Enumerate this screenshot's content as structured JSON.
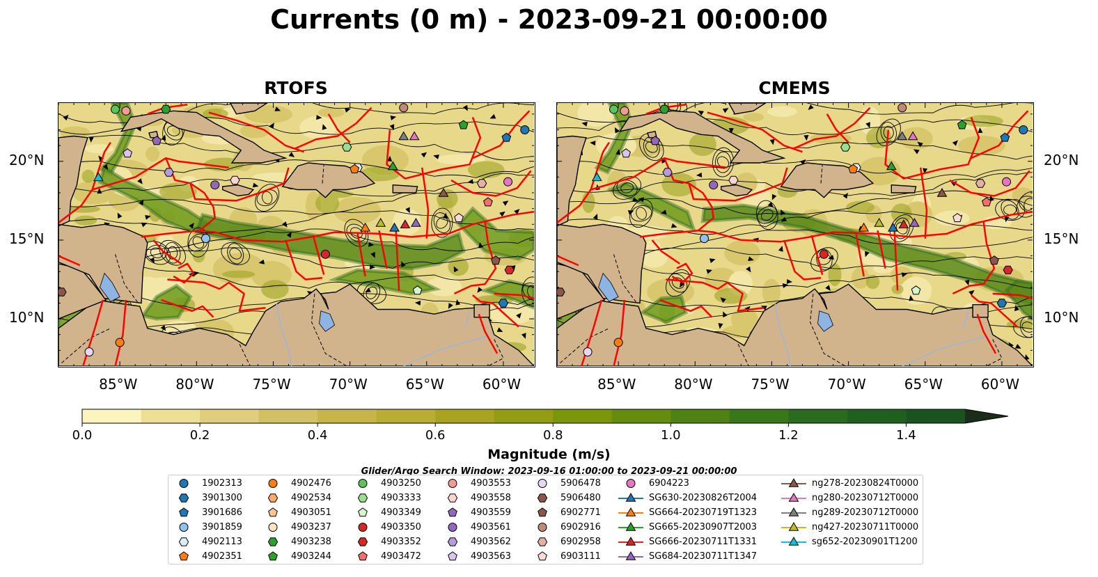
{
  "title": "Currents (0 m) - 2023-09-21 00:00:00",
  "panels": [
    {
      "title": "RTOFS"
    },
    {
      "title": "CMEMS"
    }
  ],
  "axes": {
    "lon_labels": [
      "85°W",
      "80°W",
      "75°W",
      "70°W",
      "65°W",
      "60°W"
    ],
    "lat_labels": [
      "20°N",
      "15°N",
      "10°N"
    ],
    "lon_range": [
      -89,
      -58
    ],
    "lat_range": [
      7,
      23.7
    ]
  },
  "colorbar": {
    "label": "Magnitude (m/s)",
    "ticks": [
      "0.0",
      "0.2",
      "0.4",
      "0.6",
      "0.8",
      "1.0",
      "1.2",
      "1.4"
    ],
    "range": [
      0,
      1.5
    ],
    "extend": "max",
    "colors": [
      "#fbf5bd",
      "#eedf96",
      "#e0cd7d",
      "#d3c064",
      "#c7b54b",
      "#b9ad33",
      "#a8a321",
      "#929d14",
      "#7c960c",
      "#658c0e",
      "#4e8215",
      "#3a7719",
      "#2b6b1d",
      "#1f5f20",
      "#1a5220",
      "#1a4520",
      "#1b381e",
      "#1c2c1a"
    ]
  },
  "search_window": "Glider/Argo Search Window: 2023-09-16 01:00:00 to 2023-09-21 00:00:00",
  "legend": {
    "columns": [
      [
        {
          "label": "1902313",
          "marker": "circle",
          "color": "#1f77b4"
        },
        {
          "label": "3901300",
          "marker": "hexagon",
          "color": "#1f77b4"
        },
        {
          "label": "3901686",
          "marker": "pentagon",
          "color": "#1f77b4"
        },
        {
          "label": "3901859",
          "marker": "circle",
          "color": "#8fc3ec"
        },
        {
          "label": "4902113",
          "marker": "hexagon",
          "color": "#ddeefa"
        },
        {
          "label": "4902351",
          "marker": "pentagon",
          "color": "#ff7f0e"
        }
      ],
      [
        {
          "label": "4902476",
          "marker": "circle",
          "color": "#ff7f0e"
        },
        {
          "label": "4902534",
          "marker": "hexagon",
          "color": "#ffab6c"
        },
        {
          "label": "4903051",
          "marker": "pentagon",
          "color": "#ffc592"
        },
        {
          "label": "4903237",
          "marker": "circle",
          "color": "#ffe3c6"
        },
        {
          "label": "4903238",
          "marker": "hexagon",
          "color": "#2ca02c"
        },
        {
          "label": "4903244",
          "marker": "pentagon",
          "color": "#2ca02c"
        }
      ],
      [
        {
          "label": "4903250",
          "marker": "circle",
          "color": "#5cc45c"
        },
        {
          "label": "4903333",
          "marker": "hexagon",
          "color": "#9bdf8e"
        },
        {
          "label": "4903349",
          "marker": "pentagon",
          "color": "#d5f5cc"
        },
        {
          "label": "4903350",
          "marker": "circle",
          "color": "#d62728"
        },
        {
          "label": "4903352",
          "marker": "hexagon",
          "color": "#d62728"
        },
        {
          "label": "4903472",
          "marker": "pentagon",
          "color": "#f07070"
        }
      ],
      [
        {
          "label": "4903553",
          "marker": "circle",
          "color": "#f59a96"
        },
        {
          "label": "4903558",
          "marker": "hexagon",
          "color": "#fcd5d2"
        },
        {
          "label": "4903559",
          "marker": "pentagon",
          "color": "#9467bd"
        },
        {
          "label": "4903561",
          "marker": "circle",
          "color": "#9467bd"
        },
        {
          "label": "4903562",
          "marker": "hexagon",
          "color": "#b79ad8"
        },
        {
          "label": "4903563",
          "marker": "pentagon",
          "color": "#d7c5ec"
        }
      ],
      [
        {
          "label": "5906478",
          "marker": "circle",
          "color": "#e7d6f3"
        },
        {
          "label": "5906480",
          "marker": "hexagon",
          "color": "#8c564b"
        },
        {
          "label": "6902771",
          "marker": "pentagon",
          "color": "#8c564b"
        },
        {
          "label": "6902916",
          "marker": "circle",
          "color": "#c0897a"
        },
        {
          "label": "6902958",
          "marker": "hexagon",
          "color": "#e5b0a2"
        },
        {
          "label": "6903111",
          "marker": "pentagon",
          "color": "#f8dcd3"
        }
      ],
      [
        {
          "label": "6904223",
          "marker": "circle",
          "color": "#e377c2"
        },
        {
          "label": "SG630-20230826T2004",
          "marker": "triangle-line",
          "color": "#1f77b4"
        },
        {
          "label": "SG664-20230719T1323",
          "marker": "triangle-line",
          "color": "#ff7f0e"
        },
        {
          "label": "SG665-20230907T2003",
          "marker": "triangle-line",
          "color": "#2ca02c"
        },
        {
          "label": "SG666-20230711T1331",
          "marker": "triangle-line",
          "color": "#d62728"
        },
        {
          "label": "SG684-20230711T1347",
          "marker": "triangle-line",
          "color": "#9467bd"
        }
      ],
      [
        {
          "label": "ng278-20230824T0000",
          "marker": "triangle-line",
          "color": "#8c564b"
        },
        {
          "label": "ng280-20230712T0000",
          "marker": "triangle-line",
          "color": "#e377c2"
        },
        {
          "label": "ng289-20230712T0000",
          "marker": "triangle-line",
          "color": "#7f7f7f"
        },
        {
          "label": "ng427-20230711T0000",
          "marker": "triangle-line",
          "color": "#bcbd22"
        },
        {
          "label": "sg652-20230901T1200",
          "marker": "triangle-line",
          "color": "#17becf"
        }
      ]
    ]
  },
  "platform_positions": [
    {
      "label": "1902313",
      "lon": -58.6,
      "lat": 22.0
    },
    {
      "label": "3901300",
      "lon": -60.0,
      "lat": 11.0
    },
    {
      "label": "3901686",
      "lon": -59.8,
      "lat": 21.5
    },
    {
      "label": "3901859",
      "lon": -79.4,
      "lat": 15.1
    },
    {
      "label": "4902113",
      "lon": -69.5,
      "lat": 19.6
    },
    {
      "label": "4902351",
      "lon": -69.7,
      "lat": 19.5
    },
    {
      "label": "4902476",
      "lon": -85.0,
      "lat": 8.5
    },
    {
      "label": "4903238",
      "lon": -82.0,
      "lat": 23.3
    },
    {
      "label": "4903244",
      "lon": -62.6,
      "lat": 22.3
    },
    {
      "label": "4903250",
      "lon": -85.3,
      "lat": 23.3
    },
    {
      "label": "4903333",
      "lon": -70.2,
      "lat": 20.9
    },
    {
      "label": "4903349",
      "lon": -65.6,
      "lat": 11.8
    },
    {
      "label": "4903350",
      "lon": -71.6,
      "lat": 14.1
    },
    {
      "label": "4903352",
      "lon": -59.6,
      "lat": 13.1
    },
    {
      "label": "4903472",
      "lon": -61.0,
      "lat": 17.4
    },
    {
      "label": "4903553",
      "lon": -84.6,
      "lat": 23.2
    },
    {
      "label": "4903558",
      "lon": -77.5,
      "lat": 18.8
    },
    {
      "label": "4903559",
      "lon": -82.6,
      "lat": 21.3
    },
    {
      "label": "4903561",
      "lon": -78.8,
      "lat": 18.5
    },
    {
      "label": "4903562",
      "lon": -81.8,
      "lat": 19.3
    },
    {
      "label": "4903563",
      "lon": -84.5,
      "lat": 20.5
    },
    {
      "label": "5906478",
      "lon": -87.0,
      "lat": 7.9
    },
    {
      "label": "5906480",
      "lon": -88.8,
      "lat": 11.7
    },
    {
      "label": "6902771",
      "lon": -60.5,
      "lat": 13.7
    },
    {
      "label": "6902916",
      "lon": -66.5,
      "lat": 23.4
    },
    {
      "label": "6902958",
      "lon": -61.4,
      "lat": 18.6
    },
    {
      "label": "6903111",
      "lon": -62.9,
      "lat": 16.4
    },
    {
      "label": "6904223",
      "lon": -59.7,
      "lat": 18.7
    },
    {
      "label": "SG630-20230826T2004",
      "lon": -67.1,
      "lat": 15.8
    },
    {
      "label": "SG664-20230719T1323",
      "lon": -69.0,
      "lat": 15.8
    },
    {
      "label": "SG665-20230907T2003",
      "lon": -67.2,
      "lat": 19.7
    },
    {
      "label": "SG666-20230711T1331",
      "lon": -66.4,
      "lat": 16.0
    },
    {
      "label": "SG684-20230711T1347",
      "lon": -65.7,
      "lat": 16.1
    },
    {
      "label": "ng278-20230824T0000",
      "lon": -63.9,
      "lat": 18.0
    },
    {
      "label": "ng280-20230712T0000",
      "lon": -65.8,
      "lat": 21.6
    },
    {
      "label": "ng289-20230712T0000",
      "lon": -66.5,
      "lat": 21.6
    },
    {
      "label": "ng427-20230711T0000",
      "lon": -68.0,
      "lat": 16.1
    },
    {
      "label": "sg652-20230901T1200",
      "lon": -86.4,
      "lat": 19.0
    }
  ]
}
